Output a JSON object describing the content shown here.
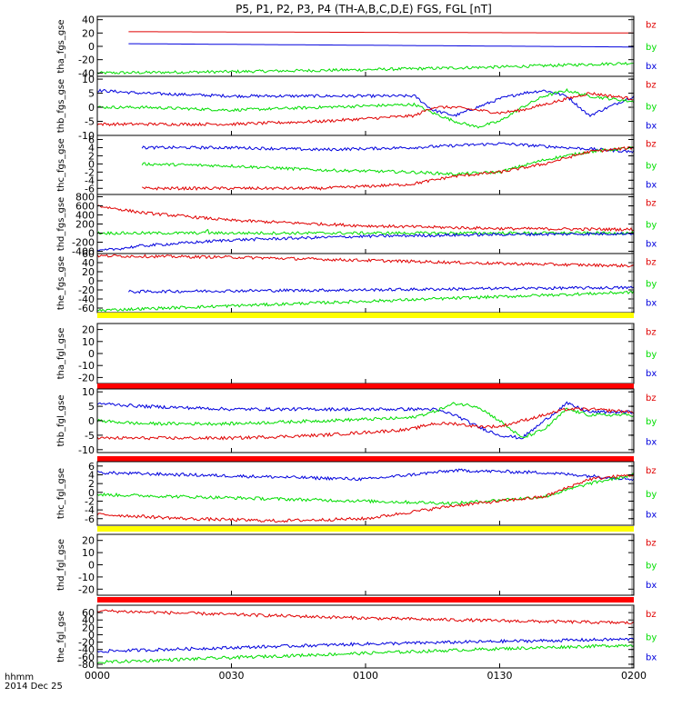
{
  "chart_data": {
    "type": "line",
    "title": "P5, P1, P2, P3, P4 (TH-A,B,C,D,E) FGS, FGL [nT]",
    "x_axis": {
      "label_line1": "hhmm",
      "label_line2": "2014 Dec 25",
      "range_minutes": [
        0,
        120
      ],
      "ticks": [
        {
          "value": 0,
          "label": "0000"
        },
        {
          "value": 30,
          "label": "0030"
        },
        {
          "value": 60,
          "label": "0100"
        },
        {
          "value": 90,
          "label": "0130"
        },
        {
          "value": 120,
          "label": "0200"
        }
      ]
    },
    "legend": [
      "bz",
      "by",
      "bx"
    ],
    "colors": {
      "bz": "#e00000",
      "by": "#00dd00",
      "bx": "#0000dd",
      "yellow_bar": "#ffff00",
      "red_bar": "#ff0000"
    },
    "panels": [
      {
        "ylabel": "tha_fgs_gse",
        "ylim": [
          -45,
          45
        ],
        "ticks": [
          {
            "v": 40,
            "l": "40"
          },
          {
            "v": 20,
            "l": "20"
          },
          {
            "v": 0,
            "l": "0"
          },
          {
            "v": -20,
            "l": "-20"
          },
          {
            "v": -40,
            "l": "-40"
          }
        ],
        "series": [
          {
            "component": "bz",
            "x": [
              7,
              120
            ],
            "y": [
              22,
              20
            ]
          },
          {
            "component": "bx",
            "x": [
              7,
              120
            ],
            "y": [
              4,
              -1
            ]
          },
          {
            "component": "by",
            "x": [
              0,
              30,
              60,
              90,
              110,
              120
            ],
            "y": [
              -40,
              -38,
              -35,
              -31,
              -27,
              -25
            ]
          }
        ]
      },
      {
        "ylabel": "thb_fgs_gse",
        "ylim": [
          -10,
          11
        ],
        "ticks": [
          {
            "v": 10,
            "l": "10"
          },
          {
            "v": 5,
            "l": "5"
          },
          {
            "v": 0,
            "l": "0"
          },
          {
            "v": -5,
            "l": "-5"
          },
          {
            "v": -10,
            "l": "-10"
          }
        ],
        "series": [
          {
            "component": "bx",
            "x": [
              0,
              10,
              30,
              50,
              71,
              75,
              80,
              85,
              90,
              95,
              100,
              105,
              110,
              120
            ],
            "y": [
              6,
              5,
              4,
              4,
              4,
              -1,
              -3,
              0,
              3,
              5,
              6,
              4,
              -3,
              4
            ]
          },
          {
            "component": "by",
            "x": [
              0,
              10,
              30,
              50,
              71,
              75,
              80,
              85,
              90,
              95,
              100,
              105,
              110,
              120
            ],
            "y": [
              0,
              0,
              -1,
              0,
              1,
              -2,
              -5,
              -7,
              -5,
              0,
              4,
              6,
              4,
              2
            ]
          },
          {
            "component": "bz",
            "x": [
              0,
              10,
              30,
              50,
              71,
              75,
              80,
              85,
              90,
              95,
              100,
              105,
              110,
              120
            ],
            "y": [
              -6,
              -6,
              -6,
              -5,
              -3,
              0,
              0,
              -1,
              -2,
              -1,
              1,
              3,
              5,
              3
            ]
          }
        ]
      },
      {
        "ylabel": "thc_fgs_gse",
        "ylim": [
          -7.5,
          7
        ],
        "ticks": [
          {
            "v": 6,
            "l": "6"
          },
          {
            "v": 4,
            "l": "4"
          },
          {
            "v": 2,
            "l": "2"
          },
          {
            "v": 0,
            "l": "0"
          },
          {
            "v": -2,
            "l": "-2"
          },
          {
            "v": -4,
            "l": "-4"
          },
          {
            "v": -6,
            "l": "-6"
          }
        ],
        "series": [
          {
            "component": "bx",
            "x": [
              10,
              30,
              50,
              70,
              90,
              105,
              120
            ],
            "y": [
              4,
              4,
              3.5,
              4,
              5,
              4,
              3
            ]
          },
          {
            "component": "by",
            "x": [
              10,
              30,
              50,
              70,
              80,
              90,
              100,
              110,
              120
            ],
            "y": [
              0,
              -0.5,
              -1.5,
              -2,
              -2.5,
              -2,
              1,
              3,
              4
            ]
          },
          {
            "component": "bz",
            "x": [
              10,
              30,
              50,
              70,
              80,
              90,
              100,
              110,
              120
            ],
            "y": [
              -6,
              -6,
              -6,
              -5,
              -3,
              -2,
              0,
              3,
              4
            ]
          }
        ]
      },
      {
        "ylabel": "thd_fgs_gse",
        "ylim": [
          -450,
          850
        ],
        "ticks": [
          {
            "v": 800,
            "l": "800"
          },
          {
            "v": 600,
            "l": "600"
          },
          {
            "v": 400,
            "l": "400"
          },
          {
            "v": 200,
            "l": "200"
          },
          {
            "v": 0,
            "l": "0"
          },
          {
            "v": -200,
            "l": "-200"
          },
          {
            "v": -400,
            "l": "-400"
          }
        ],
        "series": [
          {
            "component": "bz",
            "x": [
              0,
              10,
              30,
              60,
              90,
              120
            ],
            "y": [
              600,
              450,
              280,
              160,
              100,
              80
            ]
          },
          {
            "component": "by",
            "x": [
              0,
              24,
              24.5,
              25,
              120
            ],
            "y": [
              0,
              0,
              100,
              0,
              0
            ]
          },
          {
            "component": "bx",
            "x": [
              0,
              10,
              30,
              60,
              90,
              120
            ],
            "y": [
              -400,
              -280,
              -150,
              -70,
              -30,
              -10
            ]
          }
        ]
      },
      {
        "ylabel": "the_fgs_gse",
        "ylim": [
          -70,
          60
        ],
        "ticks": [
          {
            "v": 60,
            "l": "60"
          },
          {
            "v": 40,
            "l": "40"
          },
          {
            "v": 20,
            "l": "20"
          },
          {
            "v": 0,
            "l": "0"
          },
          {
            "v": -20,
            "l": "-20"
          },
          {
            "v": -40,
            "l": "-40"
          },
          {
            "v": -60,
            "l": "-60"
          }
        ],
        "series": [
          {
            "component": "bz",
            "x": [
              0,
              30,
              60,
              90,
              120
            ],
            "y": [
              55,
              52,
              45,
              38,
              33
            ]
          },
          {
            "component": "bx",
            "x": [
              7,
              30,
              60,
              90,
              120
            ],
            "y": [
              -24,
              -22,
              -20,
              -17,
              -15
            ]
          },
          {
            "component": "by",
            "x": [
              0,
              30,
              60,
              90,
              120
            ],
            "y": [
              -65,
              -55,
              -45,
              -35,
              -25
            ]
          }
        ]
      },
      {
        "ylabel": "tha_fgl_gse",
        "ylim": [
          -25,
          25
        ],
        "ticks": [
          {
            "v": 20,
            "l": "20"
          },
          {
            "v": 10,
            "l": "10"
          },
          {
            "v": 0,
            "l": "0"
          },
          {
            "v": -10,
            "l": "-10"
          },
          {
            "v": -20,
            "l": "-20"
          }
        ],
        "bar": "yellow",
        "series": []
      },
      {
        "ylabel": "thb_fgl_gse",
        "ylim": [
          -11,
          11
        ],
        "ticks": [
          {
            "v": 10,
            "l": "10"
          },
          {
            "v": 5,
            "l": "5"
          },
          {
            "v": 0,
            "l": "0"
          },
          {
            "v": -5,
            "l": "-5"
          },
          {
            "v": -10,
            "l": "-10"
          }
        ],
        "bar": "red",
        "series": [
          {
            "component": "bx",
            "x": [
              0,
              10,
              30,
              50,
              70,
              75,
              80,
              85,
              90,
              95,
              100,
              105,
              110,
              120
            ],
            "y": [
              6,
              5,
              4,
              4,
              4,
              4,
              2,
              -2,
              -5,
              -6,
              0,
              6,
              3,
              3
            ]
          },
          {
            "component": "by",
            "x": [
              0,
              10,
              30,
              50,
              70,
              75,
              80,
              85,
              90,
              95,
              100,
              105,
              110,
              120
            ],
            "y": [
              0,
              -1,
              -1,
              0,
              1,
              3,
              6,
              5,
              0,
              -6,
              -3,
              4,
              2,
              2
            ]
          },
          {
            "component": "bz",
            "x": [
              0,
              10,
              30,
              50,
              70,
              75,
              80,
              85,
              90,
              95,
              100,
              105,
              110,
              120
            ],
            "y": [
              -6,
              -6,
              -6,
              -5,
              -3,
              -1,
              -1,
              -2,
              -2,
              0,
              2,
              4,
              4,
              3
            ]
          }
        ]
      },
      {
        "ylabel": "thc_fgl_gse",
        "ylim": [
          -7.5,
          7
        ],
        "ticks": [
          {
            "v": 6,
            "l": "6"
          },
          {
            "v": 4,
            "l": "4"
          },
          {
            "v": 2,
            "l": "2"
          },
          {
            "v": 0,
            "l": "0"
          },
          {
            "v": -2,
            "l": "-2"
          },
          {
            "v": -4,
            "l": "-4"
          },
          {
            "v": -6,
            "l": "-6"
          }
        ],
        "bar": "red",
        "series": [
          {
            "component": "bx",
            "x": [
              0,
              20,
              40,
              60,
              80,
              100,
              120
            ],
            "y": [
              4.5,
              4,
              3.5,
              3,
              5,
              4.5,
              3
            ]
          },
          {
            "component": "by",
            "x": [
              0,
              20,
              40,
              60,
              80,
              100,
              110,
              120
            ],
            "y": [
              -0.5,
              -1,
              -1.5,
              -2,
              -2.5,
              -1,
              2,
              4
            ]
          },
          {
            "component": "bz",
            "x": [
              0,
              20,
              40,
              60,
              80,
              100,
              110,
              120
            ],
            "y": [
              -5,
              -6,
              -6.5,
              -6,
              -3,
              -1,
              3,
              4
            ]
          }
        ]
      },
      {
        "ylabel": "thd_fgl_gse",
        "ylim": [
          -25,
          25
        ],
        "ticks": [
          {
            "v": 20,
            "l": "20"
          },
          {
            "v": 10,
            "l": "10"
          },
          {
            "v": 0,
            "l": "0"
          },
          {
            "v": -10,
            "l": "-10"
          },
          {
            "v": -20,
            "l": "-20"
          }
        ],
        "bar": "yellow",
        "series": []
      },
      {
        "ylabel": "the_fgl_gse",
        "ylim": [
          -90,
          80
        ],
        "ticks": [
          {
            "v": 60,
            "l": "60"
          },
          {
            "v": 40,
            "l": "40"
          },
          {
            "v": 20,
            "l": "20"
          },
          {
            "v": 0,
            "l": "0"
          },
          {
            "v": -20,
            "l": "-20"
          },
          {
            "v": -40,
            "l": "-40"
          },
          {
            "v": -60,
            "l": "-60"
          },
          {
            "v": -80,
            "l": "-80"
          }
        ],
        "bar": "red",
        "series": [
          {
            "component": "bz",
            "x": [
              0,
              30,
              60,
              90,
              120
            ],
            "y": [
              65,
              55,
              45,
              38,
              32
            ]
          },
          {
            "component": "bx",
            "x": [
              0,
              30,
              60,
              90,
              120
            ],
            "y": [
              -45,
              -35,
              -25,
              -18,
              -12
            ]
          },
          {
            "component": "by",
            "x": [
              0,
              30,
              60,
              90,
              120
            ],
            "y": [
              -75,
              -62,
              -50,
              -38,
              -28
            ]
          }
        ]
      }
    ]
  }
}
